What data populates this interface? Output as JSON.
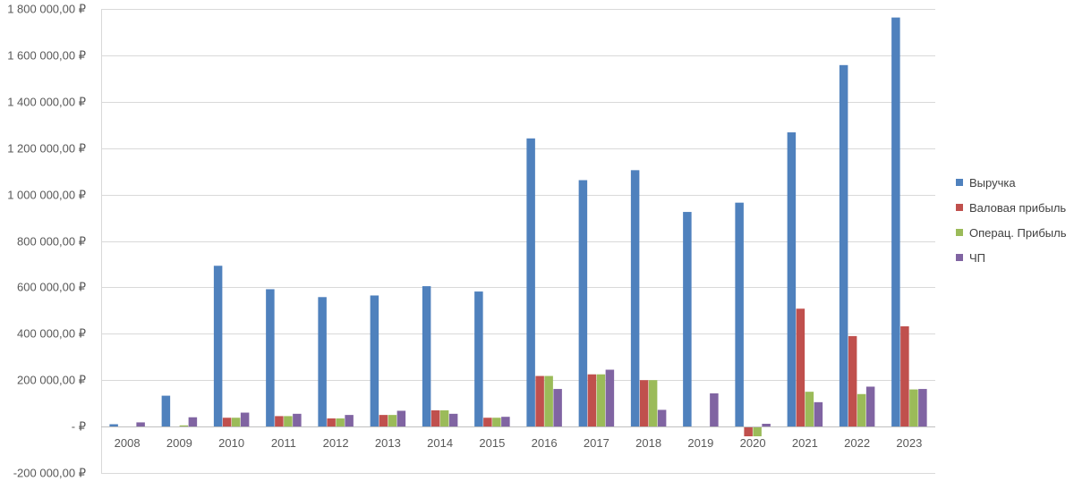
{
  "chart_data": {
    "type": "bar",
    "categories": [
      "2008",
      "2009",
      "2010",
      "2011",
      "2012",
      "2013",
      "2014",
      "2015",
      "2016",
      "2017",
      "2018",
      "2019",
      "2020",
      "2021",
      "2022",
      "2023"
    ],
    "series": [
      {
        "name": "Выручка",
        "color": "#4F81BD",
        "values": [
          10000,
          133000,
          693000,
          592000,
          558000,
          565000,
          605000,
          582000,
          1242000,
          1062000,
          1105000,
          925000,
          965000,
          1268000,
          1558000,
          1763000
        ]
      },
      {
        "name": "Валовая прибыль",
        "color": "#C0504D",
        "values": [
          0,
          0,
          38000,
          45000,
          35000,
          50000,
          70000,
          38000,
          218000,
          225000,
          200000,
          0,
          -42000,
          508000,
          390000,
          432000
        ]
      },
      {
        "name": "Операц. Прибыль",
        "color": "#9BBB59",
        "values": [
          0,
          5000,
          38000,
          45000,
          35000,
          50000,
          70000,
          38000,
          218000,
          225000,
          200000,
          0,
          -42000,
          150000,
          140000,
          160000
        ]
      },
      {
        "name": "ЧП",
        "color": "#8064A2",
        "values": [
          18000,
          40000,
          60000,
          55000,
          50000,
          68000,
          55000,
          42000,
          162000,
          245000,
          72000,
          143000,
          12000,
          105000,
          172000,
          162000
        ]
      }
    ],
    "y_ticks": [
      {
        "value": 1800000,
        "label": "1 800 000,00 ₽"
      },
      {
        "value": 1600000,
        "label": "1 600 000,00 ₽"
      },
      {
        "value": 1400000,
        "label": "1 400 000,00 ₽"
      },
      {
        "value": 1200000,
        "label": "1 200 000,00 ₽"
      },
      {
        "value": 1000000,
        "label": "1 000 000,00 ₽"
      },
      {
        "value": 800000,
        "label": "800 000,00 ₽"
      },
      {
        "value": 600000,
        "label": "600 000,00 ₽"
      },
      {
        "value": 400000,
        "label": "400 000,00 ₽"
      },
      {
        "value": 200000,
        "label": "200 000,00 ₽"
      },
      {
        "value": 0,
        "label": "-   ₽"
      },
      {
        "value": -200000,
        "label": "-200 000,00 ₽"
      }
    ],
    "ylim": [
      -200000,
      1800000
    ],
    "grid": true,
    "legend_position": "right",
    "title": "",
    "xlabel": "",
    "ylabel": ""
  }
}
